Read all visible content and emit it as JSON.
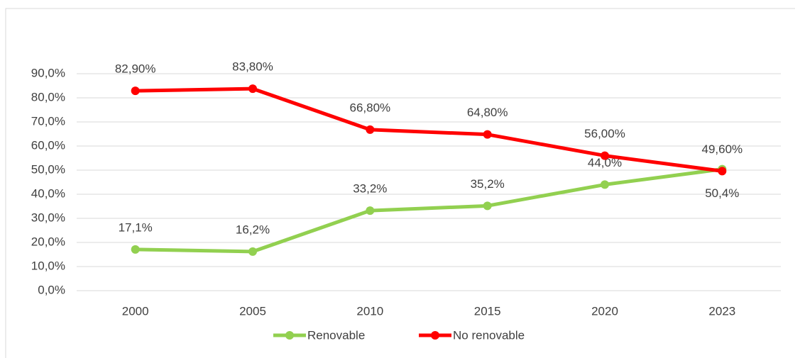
{
  "chart_data": {
    "type": "line",
    "categories": [
      "2000",
      "2005",
      "2010",
      "2015",
      "2020",
      "2023"
    ],
    "series": [
      {
        "name": "Renovable",
        "color": "#92d050",
        "values": [
          17.1,
          16.2,
          33.2,
          35.2,
          44.0,
          50.4
        ],
        "value_labels": [
          "17,1%",
          "16,2%",
          "33,2%",
          "35,2%",
          "44,0%",
          "50,4%"
        ]
      },
      {
        "name": "No renovable",
        "color": "#ff0000",
        "values": [
          82.9,
          83.8,
          66.8,
          64.8,
          56.0,
          49.6
        ],
        "value_labels": [
          "82,90%",
          "83,80%",
          "66,80%",
          "64,80%",
          "56,00%",
          "49,60%"
        ]
      }
    ],
    "ylim": [
      0,
      90
    ],
    "yticks": [
      {
        "value": 0,
        "label": "0,0%"
      },
      {
        "value": 10,
        "label": "10,0%"
      },
      {
        "value": 20,
        "label": "20,0%"
      },
      {
        "value": 30,
        "label": "30,0%"
      },
      {
        "value": 40,
        "label": "40,0%"
      },
      {
        "value": 50,
        "label": "50,0%"
      },
      {
        "value": 60,
        "label": "60,0%"
      },
      {
        "value": 70,
        "label": "70,0%"
      },
      {
        "value": 80,
        "label": "80,0%"
      },
      {
        "value": 90,
        "label": "90,0%"
      }
    ],
    "grid": true,
    "legend": "bottom"
  }
}
